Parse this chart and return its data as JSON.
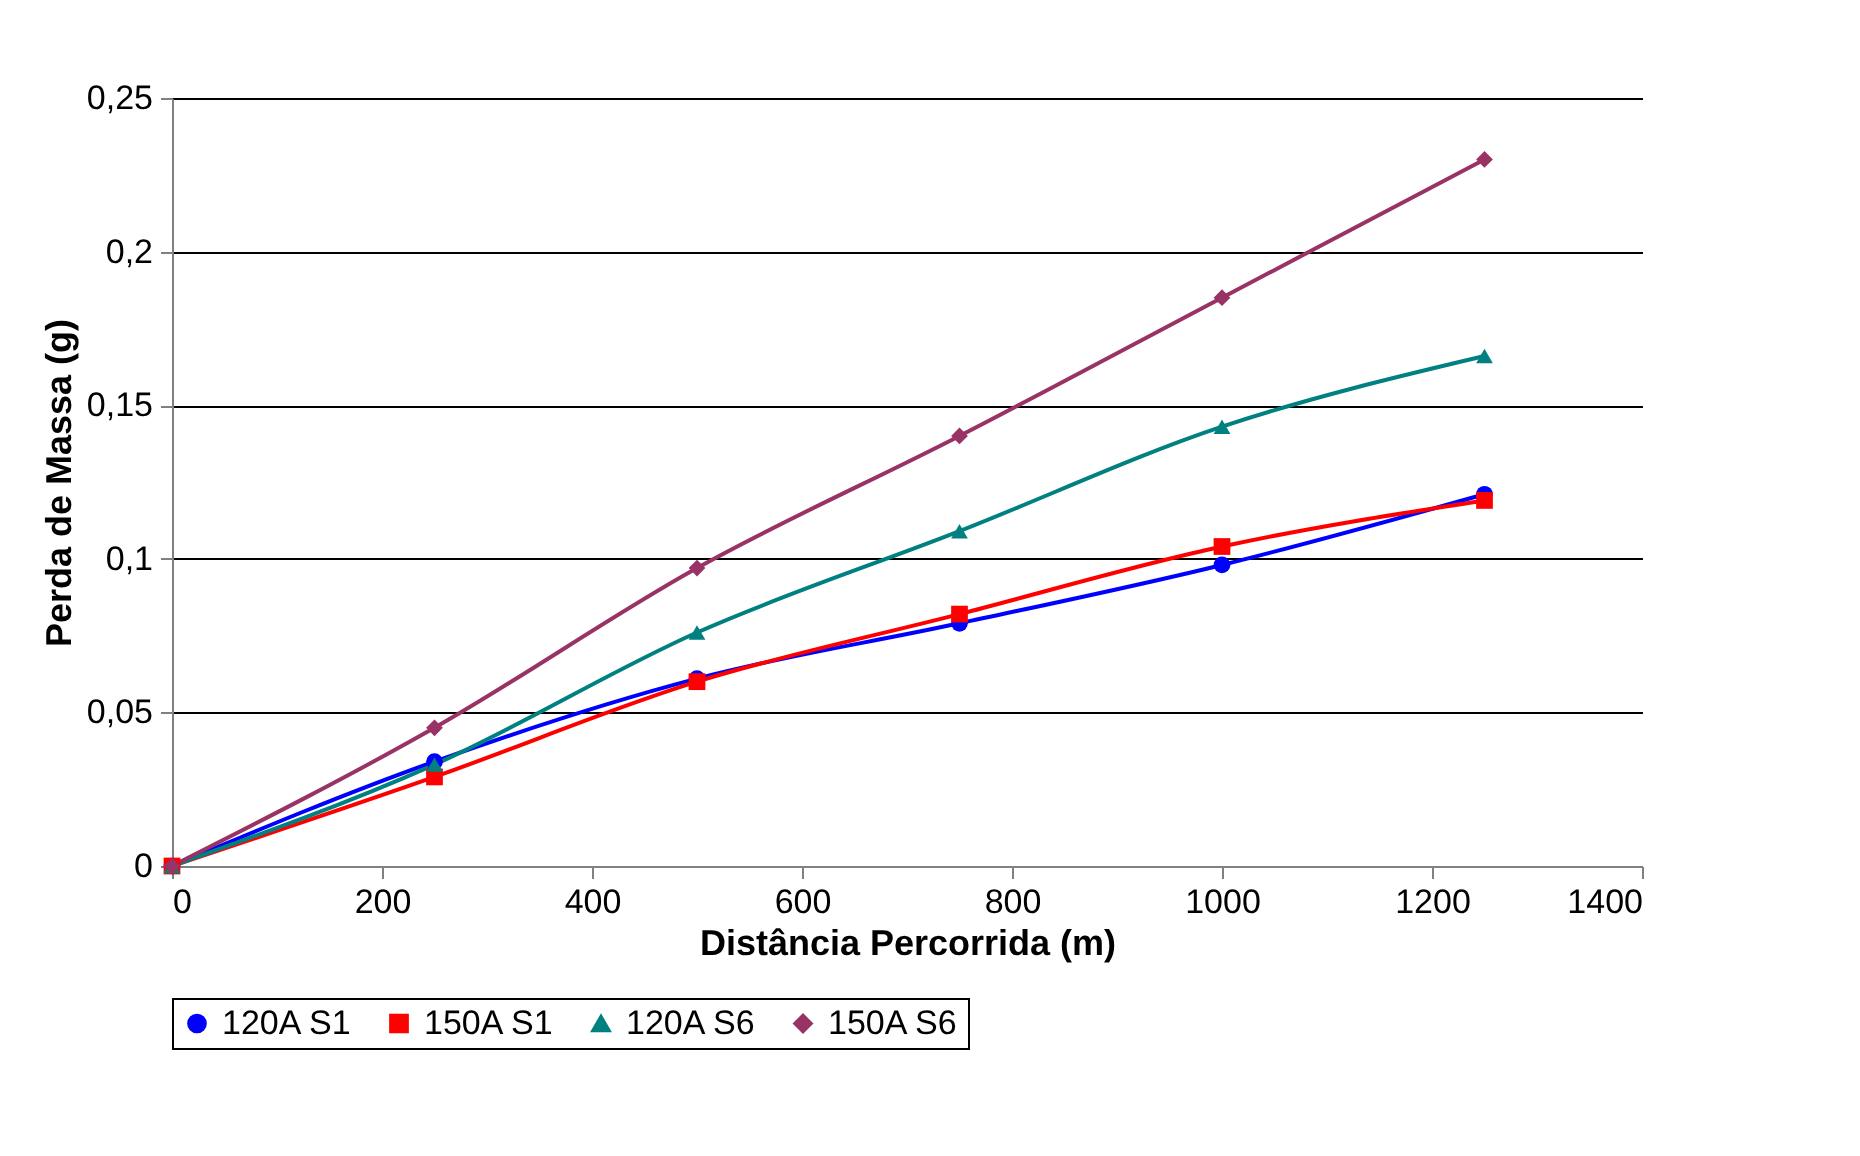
{
  "chart_data": {
    "type": "line",
    "xlabel": "Distância Percorrida (m)",
    "ylabel": "Perda de Massa (g)",
    "x": [
      0,
      250,
      500,
      750,
      1000,
      1250
    ],
    "series": [
      {
        "name": "120A S1",
        "color": "#0000ff",
        "marker": "circle",
        "values": [
          0,
          0.034,
          0.061,
          0.079,
          0.098,
          0.121
        ]
      },
      {
        "name": "150A S1",
        "color": "#ff0000",
        "marker": "square",
        "values": [
          0,
          0.029,
          0.06,
          0.082,
          0.104,
          0.119
        ]
      },
      {
        "name": "120A S6",
        "color": "#008080",
        "marker": "triangle",
        "values": [
          0,
          0.033,
          0.076,
          0.109,
          0.143,
          0.166
        ]
      },
      {
        "name": "150A S6",
        "color": "#993366",
        "marker": "diamond",
        "values": [
          0,
          0.045,
          0.097,
          0.14,
          0.185,
          0.23
        ]
      }
    ],
    "xlim": [
      0,
      1400
    ],
    "xticks": [
      0,
      200,
      400,
      600,
      800,
      1000,
      1200,
      1400
    ],
    "ylim": [
      0,
      0.25
    ],
    "yticks": [
      0,
      {
        "value": 0.05,
        "label": "0,05"
      },
      {
        "value": 0.1,
        "label": "0,1"
      },
      {
        "value": 0.15,
        "label": "0,15"
      },
      {
        "value": 0.2,
        "label": "0,2"
      },
      {
        "value": 0.25,
        "label": "0,25"
      }
    ],
    "grid": "y",
    "legend": "bottom"
  }
}
